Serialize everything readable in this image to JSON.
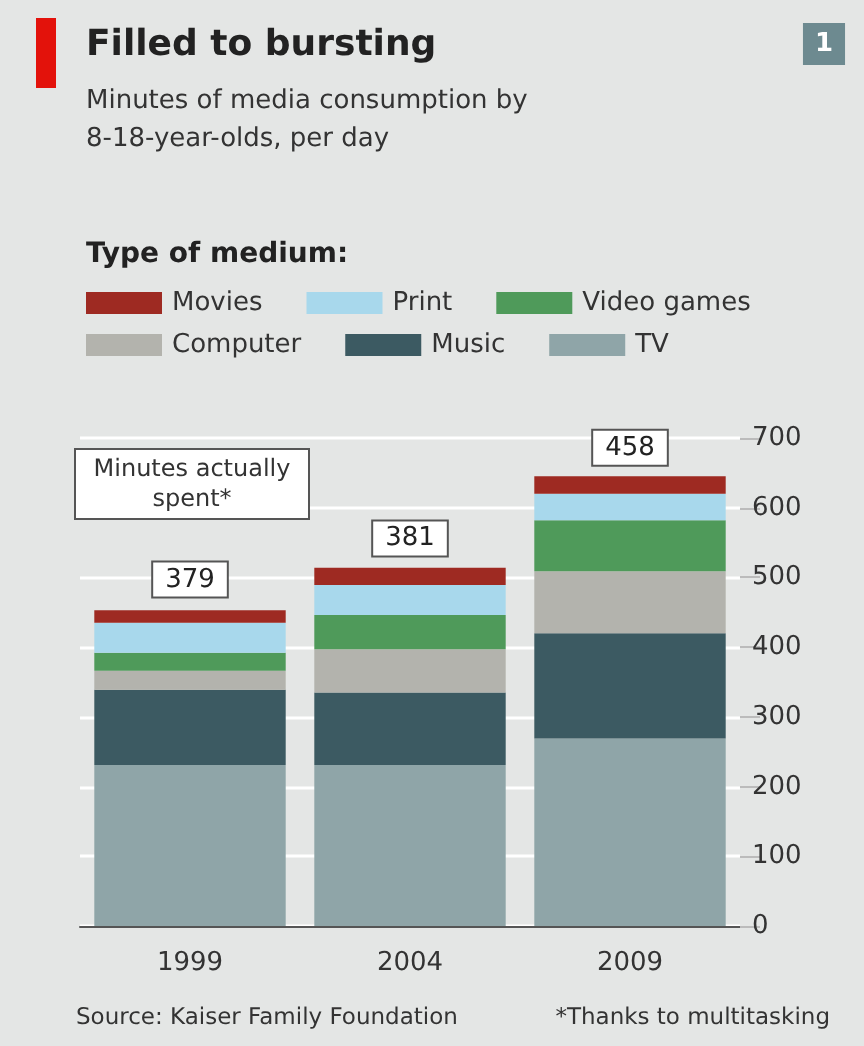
{
  "chart_data": {
    "type": "bar",
    "title": "Filled to bursting",
    "subtitle": "Minutes of media consumption by 8-18-year-olds, per day",
    "legend_title": "Type of medium:",
    "categories": [
      "1999",
      "2004",
      "2009"
    ],
    "series": [
      {
        "name": "TV",
        "color": "#8fa5a8",
        "values": [
          231,
          231,
          269
        ]
      },
      {
        "name": "Music",
        "color": "#3c5a62",
        "values": [
          108,
          104,
          151
        ]
      },
      {
        "name": "Computer",
        "color": "#b3b3ad",
        "values": [
          27,
          62,
          89
        ]
      },
      {
        "name": "Video games",
        "color": "#4f9a5a",
        "values": [
          26,
          49,
          73
        ]
      },
      {
        "name": "Print",
        "color": "#a8d8ec",
        "values": [
          43,
          43,
          38
        ]
      },
      {
        "name": "Movies",
        "color": "#9e2a22",
        "values": [
          18,
          25,
          25
        ]
      }
    ],
    "stacked": true,
    "ylim": [
      0,
      700
    ],
    "yticks": [
      0,
      100,
      200,
      300,
      400,
      500,
      600,
      700
    ],
    "grid": "y",
    "legend": "top",
    "annotations": [
      {
        "text": "379",
        "x": "1999",
        "y": 497
      },
      {
        "text": "381",
        "x": "2004",
        "y": 556
      },
      {
        "text": "458",
        "x": "2009",
        "y": 686
      },
      "Minutes actually spent*",
      "Source: Kaiser Family Foundation",
      "*Thanks to multitasking",
      "1"
    ]
  }
}
